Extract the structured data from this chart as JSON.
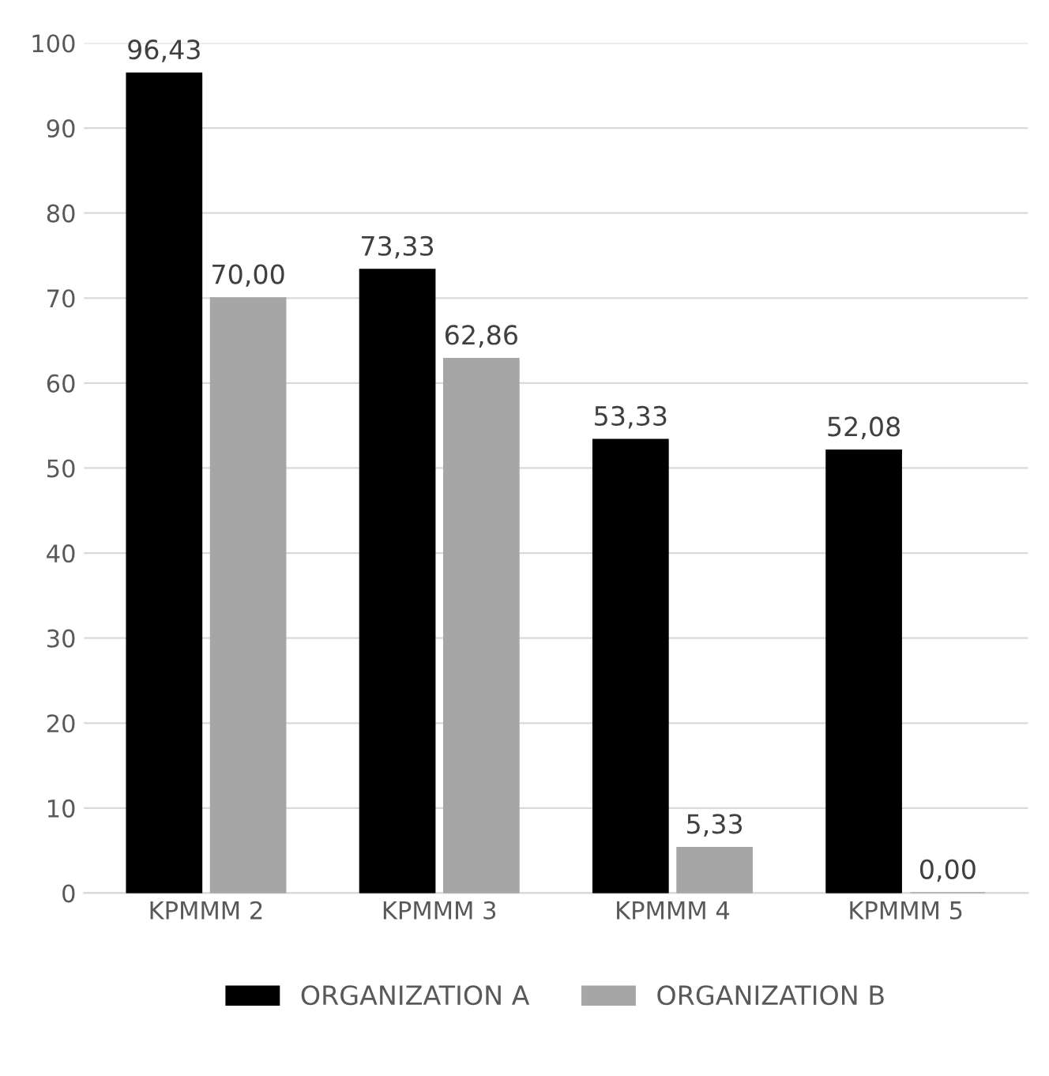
{
  "chart_data": {
    "type": "bar",
    "categories": [
      "KPMMM 2",
      "KPMMM 3",
      "KPMMM 4",
      "KPMMM 5"
    ],
    "series": [
      {
        "name": "ORGANIZATION A",
        "color": "#000000",
        "values": [
          96.43,
          73.33,
          53.33,
          52.08
        ],
        "value_labels": [
          "96,43",
          "73,33",
          "53,33",
          "52,08"
        ]
      },
      {
        "name": "ORGANIZATION B",
        "color": "#a6a6a6",
        "values": [
          70.0,
          62.86,
          5.33,
          0.0
        ],
        "value_labels": [
          "70,00",
          "62,86",
          "5,33",
          "0,00"
        ]
      }
    ],
    "ylim": [
      0,
      100
    ],
    "yticks": [
      0,
      10,
      20,
      30,
      40,
      50,
      60,
      70,
      80,
      90,
      100
    ],
    "grid": "y",
    "legend": "bottom"
  }
}
